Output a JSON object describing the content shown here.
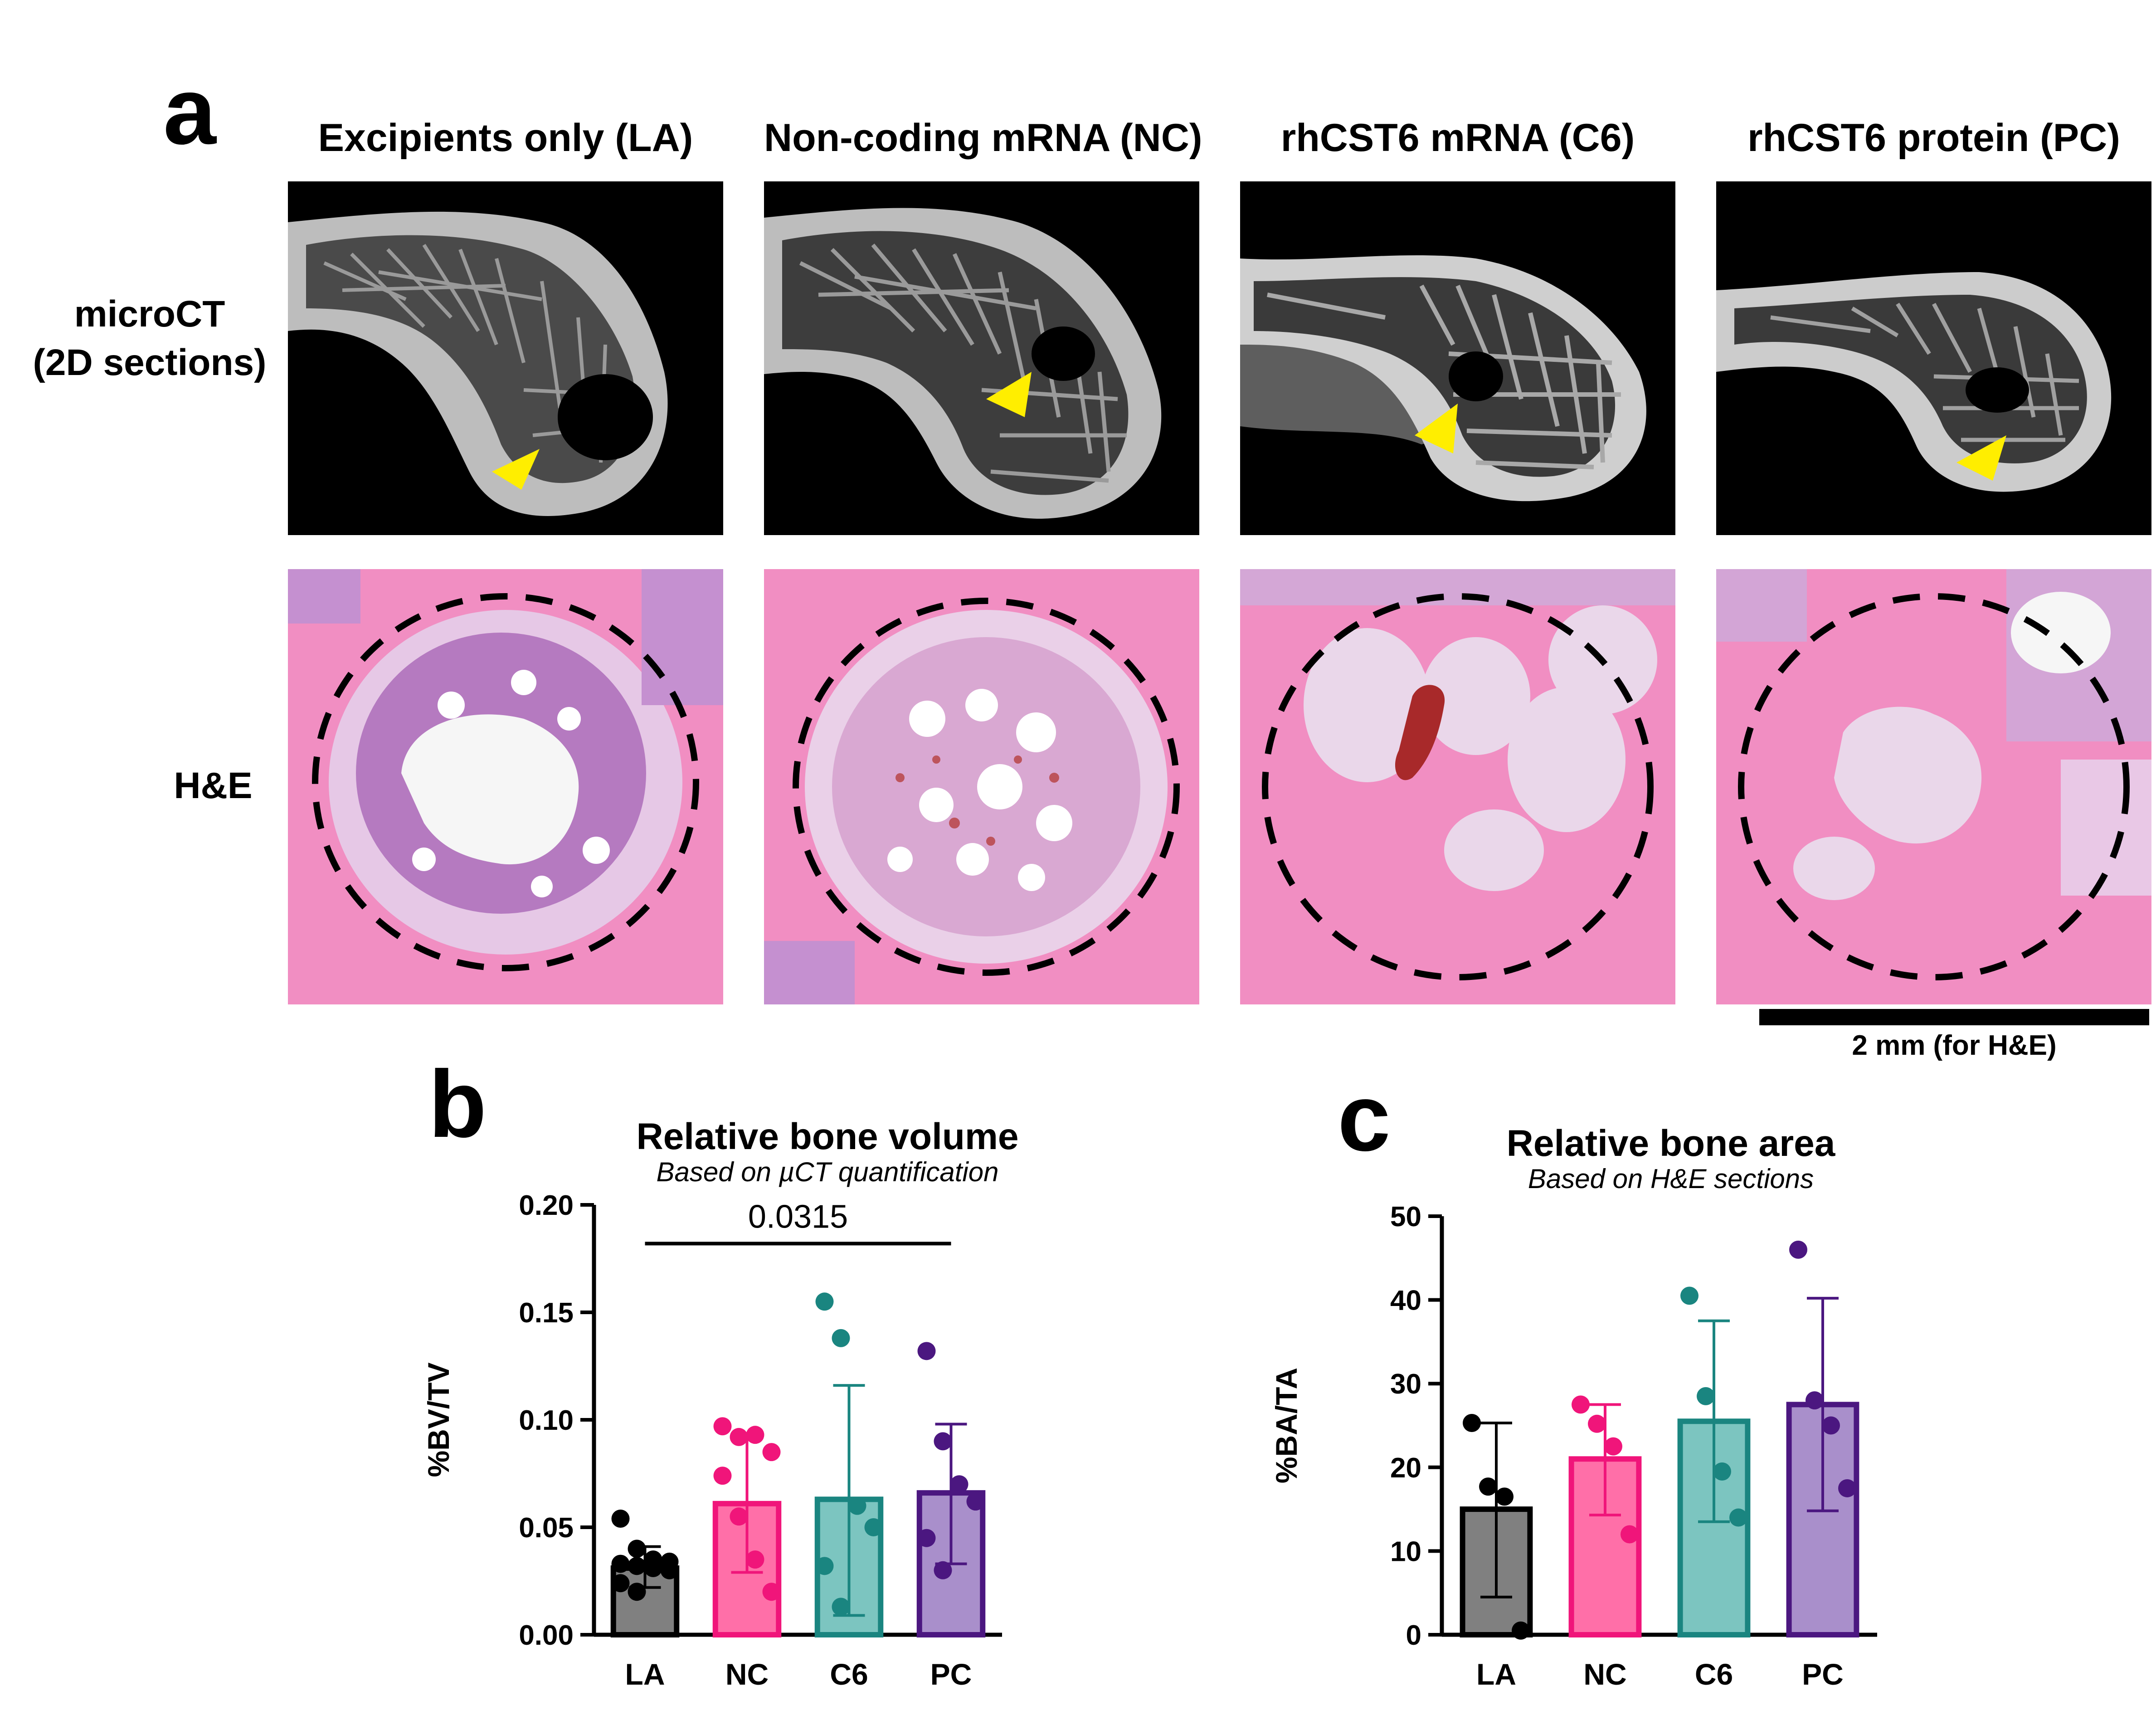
{
  "figure": {
    "panel_a": {
      "letter": "a",
      "columns": [
        "Excipients only (LA)",
        "Non-coding mRNA (NC)",
        "rhCST6 mRNA (C6)",
        "rhCST6 protein (PC)"
      ],
      "row_labels": {
        "microct_line1": "microCT",
        "microct_line2": "(2D sections)",
        "he": "H&E"
      },
      "scale_bar_label": "2 mm (for H&E)"
    },
    "panel_b": {
      "letter": "b"
    },
    "panel_c": {
      "letter": "c"
    },
    "colors": {
      "arrow": "#ffee00",
      "LA": "#808080",
      "NC": "#ff6fa8",
      "C6": "#7cc5c0",
      "PC": "#a98fcb",
      "LA_edge": "#000000",
      "NC_edge": "#f0157a",
      "C6_edge": "#1a8580",
      "PC_edge": "#4b1780"
    }
  },
  "chart_data": [
    {
      "type": "bar",
      "title": "Relative bone volume",
      "subtitle": "Based on µCT quantification",
      "ylabel": "%BV/TV",
      "xlabel": "",
      "categories": [
        "LA",
        "NC",
        "C6",
        "PC"
      ],
      "values": [
        0.031,
        0.061,
        0.063,
        0.066
      ],
      "error_high": [
        0.041,
        0.092,
        0.116,
        0.098
      ],
      "error_low": [
        0.022,
        0.029,
        0.009,
        0.033
      ],
      "points": [
        [
          0.054,
          0.04,
          0.035,
          0.034,
          0.033,
          0.032,
          0.031,
          0.03,
          0.024,
          0.02
        ],
        [
          0.097,
          0.092,
          0.093,
          0.085,
          0.074,
          0.055,
          0.035,
          0.02
        ],
        [
          0.155,
          0.138,
          0.06,
          0.05,
          0.032,
          0.013
        ],
        [
          0.132,
          0.09,
          0.07,
          0.062,
          0.045,
          0.03
        ]
      ],
      "ylim": [
        0,
        0.2
      ],
      "yticks": [
        "0.00",
        "0.05",
        "0.10",
        "0.15",
        "0.20"
      ],
      "annotation": {
        "text": "0.0315",
        "from": "LA",
        "to": "PC"
      }
    },
    {
      "type": "bar",
      "title": "Relative bone area",
      "subtitle": "Based on H&E sections",
      "ylabel": "%BA/TA",
      "xlabel": "",
      "categories": [
        "LA",
        "NC",
        "C6",
        "PC"
      ],
      "values": [
        15,
        21,
        25.5,
        27.5
      ],
      "error_high": [
        25.3,
        27.5,
        37.5,
        40.2
      ],
      "error_low": [
        4.5,
        14.3,
        13.5,
        14.8
      ],
      "points": [
        [
          25.3,
          17.7,
          16.5,
          0.5
        ],
        [
          27.5,
          25.2,
          22.5,
          12.0
        ],
        [
          40.5,
          28.5,
          19.5,
          14.0
        ],
        [
          46.0,
          28.0,
          25.0,
          17.5
        ]
      ],
      "ylim": [
        0,
        50
      ],
      "yticks": [
        "0",
        "10",
        "20",
        "30",
        "40",
        "50"
      ]
    }
  ]
}
